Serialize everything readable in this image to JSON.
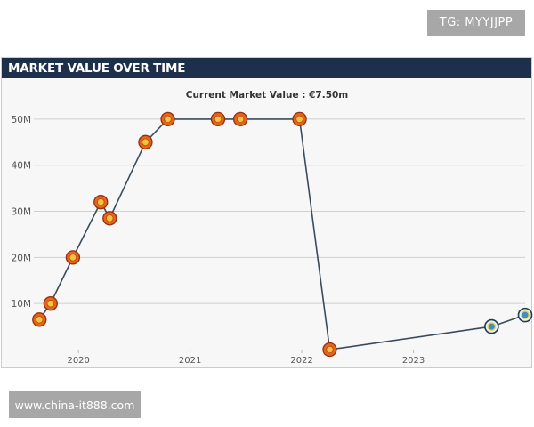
{
  "watermarks": {
    "top": "TG: MYYJJPP",
    "bottom": "www.china-it888.com"
  },
  "panel": {
    "title": "MARKET VALUE OVER TIME"
  },
  "colors": {
    "header_bg": "#1d2f4a",
    "line": "#3a4b5c",
    "grid": "#cfcfcf",
    "club_a_badge": "#e2661c",
    "club_b_badge": "#3f8fc4"
  },
  "chart_data": {
    "type": "line",
    "subtitle": "Current Market Value : €7.50m",
    "y_ticks": [
      {
        "value": 10,
        "label": "10M"
      },
      {
        "value": 20,
        "label": "20M"
      },
      {
        "value": 30,
        "label": "30M"
      },
      {
        "value": 40,
        "label": "40M"
      },
      {
        "value": 50,
        "label": "50M"
      }
    ],
    "x_ticks": [
      {
        "value": 2020.0,
        "label": "2020"
      },
      {
        "value": 2021.0,
        "label": "2021"
      },
      {
        "value": 2022.0,
        "label": "2022"
      },
      {
        "value": 2023.0,
        "label": "2023"
      }
    ],
    "xlim": [
      2019.6,
      2024.0
    ],
    "ylim": [
      0,
      55
    ],
    "grid": true,
    "series": [
      {
        "points": [
          {
            "x": 2019.65,
            "y": 6.5,
            "club": "club-a"
          },
          {
            "x": 2019.75,
            "y": 10,
            "club": "club-a"
          },
          {
            "x": 2019.95,
            "y": 20,
            "club": "club-a"
          },
          {
            "x": 2020.2,
            "y": 32,
            "club": "club-a"
          },
          {
            "x": 2020.28,
            "y": 28.5,
            "club": "club-a"
          },
          {
            "x": 2020.6,
            "y": 45,
            "club": "club-a"
          },
          {
            "x": 2020.8,
            "y": 50,
            "club": "club-a"
          },
          {
            "x": 2021.25,
            "y": 50,
            "club": "club-a"
          },
          {
            "x": 2021.45,
            "y": 50,
            "club": "club-a"
          },
          {
            "x": 2021.98,
            "y": 50,
            "club": "club-a"
          },
          {
            "x": 2022.25,
            "y": 0,
            "club": "club-a"
          },
          {
            "x": 2023.7,
            "y": 5,
            "club": "club-b"
          },
          {
            "x": 2024.0,
            "y": 7.5,
            "club": "club-b"
          }
        ]
      }
    ]
  }
}
